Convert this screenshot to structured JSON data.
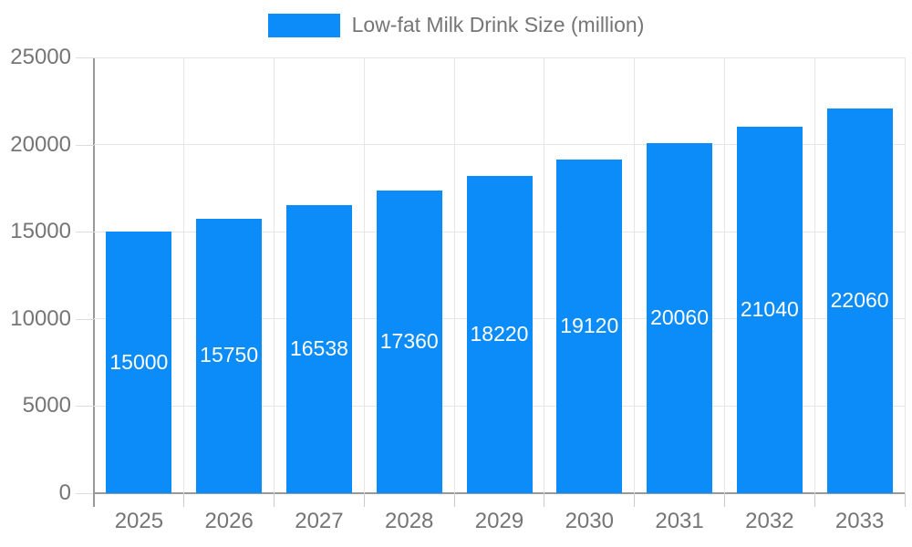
{
  "legend": {
    "label": "Low-fat Milk Drink Size (million)"
  },
  "chart_data": {
    "type": "bar",
    "title": "",
    "categories": [
      "2025",
      "2026",
      "2027",
      "2028",
      "2029",
      "2030",
      "2031",
      "2032",
      "2033"
    ],
    "series": [
      {
        "name": "Low-fat Milk Drink Size (million)",
        "values": [
          15000,
          15750,
          16538,
          17360,
          18220,
          19120,
          20060,
          21040,
          22060
        ]
      }
    ],
    "value_labels": [
      "15000",
      "15750",
      "16538",
      "17360",
      "18220",
      "19120",
      "20060",
      "21040",
      "22060"
    ],
    "xlabel": "",
    "ylabel": "",
    "ylim": [
      0,
      25000
    ],
    "yticks": [
      0,
      5000,
      10000,
      15000,
      20000,
      25000
    ],
    "grid": true,
    "legend_position": "top",
    "colors": {
      "bar": "#0b8cf8",
      "value_label": "#ffffff",
      "axis_text": "#757575",
      "axis_line": "#999999",
      "gridline": "#e6e6e6",
      "background": "#ffffff"
    }
  }
}
